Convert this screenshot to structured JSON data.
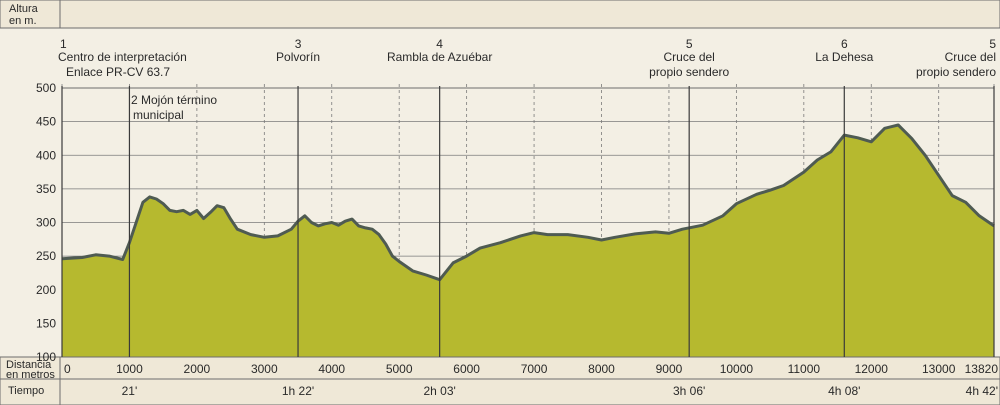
{
  "header": {
    "altitude_label_line1": "Altura",
    "altitude_label_line2": "en m."
  },
  "footer": {
    "distance_label_line1": "Distancia",
    "distance_label_line2": "en metros",
    "time_label": "Tiempo"
  },
  "waypoints": [
    {
      "number": "1",
      "name_line1": "Centro de interpretación",
      "name_line2": "Enlace PR-CV 63.7",
      "x": 0
    },
    {
      "number": "2",
      "name_line1": "Mojón término",
      "name_line2": "municipal",
      "x": 1000
    },
    {
      "number": "3",
      "name_line1": "Polvorín",
      "name_line2": "",
      "x": 3500
    },
    {
      "number": "4",
      "name_line1": "Rambla de Azuébar",
      "name_line2": "",
      "x": 5600
    },
    {
      "number": "5",
      "name_line1": "Cruce del",
      "name_line2": "propio sendero",
      "x": 9300
    },
    {
      "number": "6",
      "name_line1": "La Dehesa",
      "name_line2": "",
      "x": 11600
    },
    {
      "number": "5",
      "name_line1": "Cruce del",
      "name_line2": "propio sendero",
      "x": 13820
    }
  ],
  "times": [
    {
      "label": "21'",
      "x": 1000
    },
    {
      "label": "1h 22'",
      "x": 3500
    },
    {
      "label": "2h 03'",
      "x": 5600
    },
    {
      "label": "3h 06'",
      "x": 9300
    },
    {
      "label": "4h 08'",
      "x": 11600
    },
    {
      "label": "4h 42'",
      "x": 13820
    }
  ],
  "chart_data": {
    "type": "area",
    "title": "",
    "xlabel": "Distancia en metros",
    "ylabel": "Altura en m.",
    "xlim": [
      0,
      13820
    ],
    "ylim": [
      100,
      500
    ],
    "x_ticks": [
      0,
      1000,
      2000,
      3000,
      4000,
      5000,
      6000,
      7000,
      8000,
      9000,
      10000,
      11000,
      12000,
      13000,
      13820
    ],
    "y_ticks": [
      100,
      150,
      200,
      250,
      300,
      350,
      400,
      450,
      500
    ],
    "grid": true,
    "colors": {
      "fill": "#b6b92f",
      "stroke": "#4f5b52",
      "grid": "#7a7a7a"
    },
    "series": [
      {
        "x": [
          0,
          300,
          500,
          700,
          900,
          1000,
          1200,
          1300,
          1400,
          1500,
          1600,
          1700,
          1800,
          1900,
          2000,
          2100,
          2200,
          2300,
          2400,
          2500,
          2600,
          2800,
          3000,
          3200,
          3400,
          3500,
          3600,
          3700,
          3800,
          3900,
          4000,
          4100,
          4200,
          4300,
          4400,
          4500,
          4600,
          4700,
          4800,
          4900,
          5000,
          5200,
          5400,
          5600,
          5800,
          6000,
          6200,
          6500,
          6800,
          7000,
          7200,
          7500,
          7800,
          8000,
          8200,
          8500,
          8800,
          9000,
          9200,
          9500,
          9800,
          10000,
          10300,
          10500,
          10700,
          11000,
          11200,
          11400,
          11600,
          11800,
          12000,
          12200,
          12400,
          12600,
          12800,
          13000,
          13200,
          13400,
          13600,
          13820
        ],
        "y": [
          246,
          248,
          252,
          250,
          245,
          270,
          330,
          338,
          335,
          328,
          318,
          316,
          318,
          312,
          318,
          306,
          315,
          325,
          322,
          305,
          290,
          282,
          278,
          280,
          290,
          302,
          310,
          300,
          295,
          298,
          300,
          296,
          302,
          305,
          295,
          292,
          290,
          282,
          268,
          250,
          242,
          228,
          222,
          215,
          240,
          250,
          262,
          270,
          280,
          285,
          282,
          282,
          278,
          274,
          278,
          283,
          286,
          284,
          290,
          296,
          310,
          328,
          342,
          348,
          355,
          375,
          393,
          405,
          430,
          426,
          420,
          440,
          445,
          425,
          400,
          370,
          340,
          330,
          310,
          295
        ]
      }
    ]
  }
}
